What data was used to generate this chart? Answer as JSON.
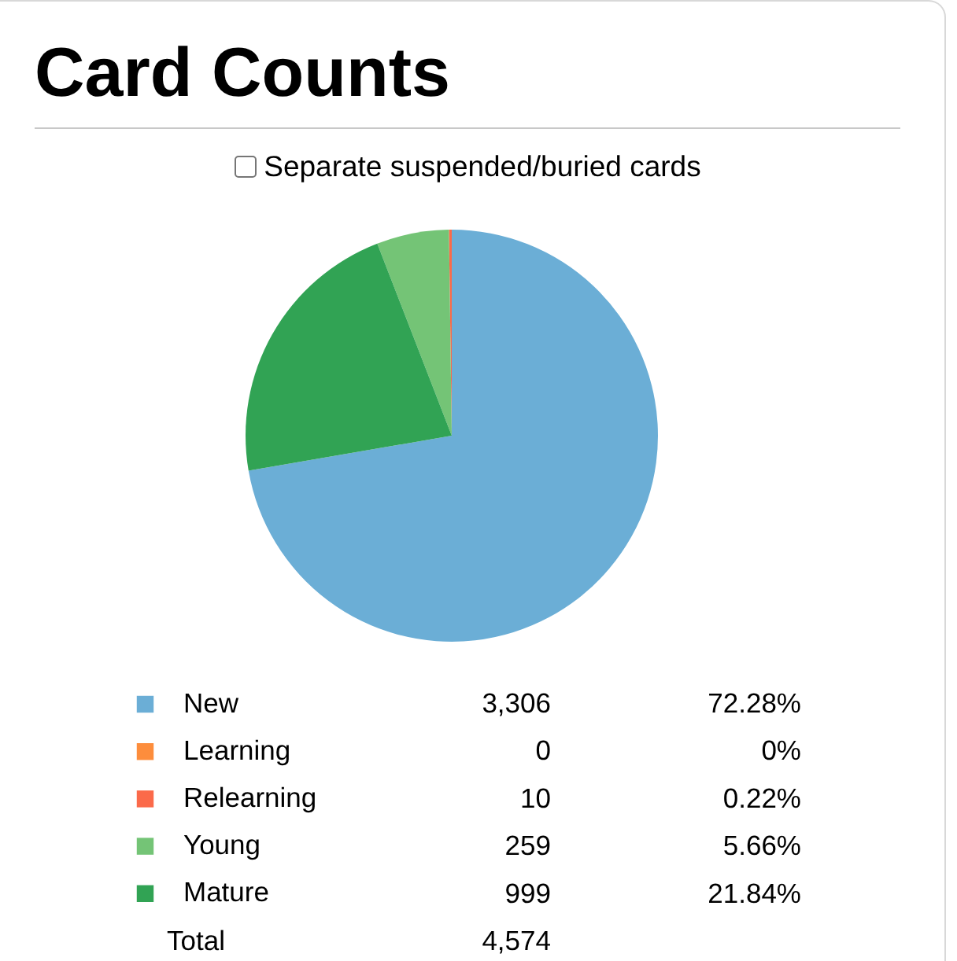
{
  "chart_data": {
    "type": "pie",
    "title": "Card Counts",
    "categories": [
      "New",
      "Learning",
      "Relearning",
      "Young",
      "Mature"
    ],
    "values": [
      3306,
      0,
      10,
      259,
      999
    ],
    "colors": [
      "#6baed6",
      "#fd8d3c",
      "#fb6a4a",
      "#74c476",
      "#31a354"
    ],
    "value_labels": [
      "3,306",
      "0",
      "10",
      "259",
      "999"
    ],
    "totals": [
      "4,574"
    ],
    "annotations": [
      "Separate suspended/buried cards",
      "72.28%",
      "0%",
      "0.22%",
      "5.66%",
      "21.84%",
      "Total"
    ],
    "legend": "bottom"
  }
}
